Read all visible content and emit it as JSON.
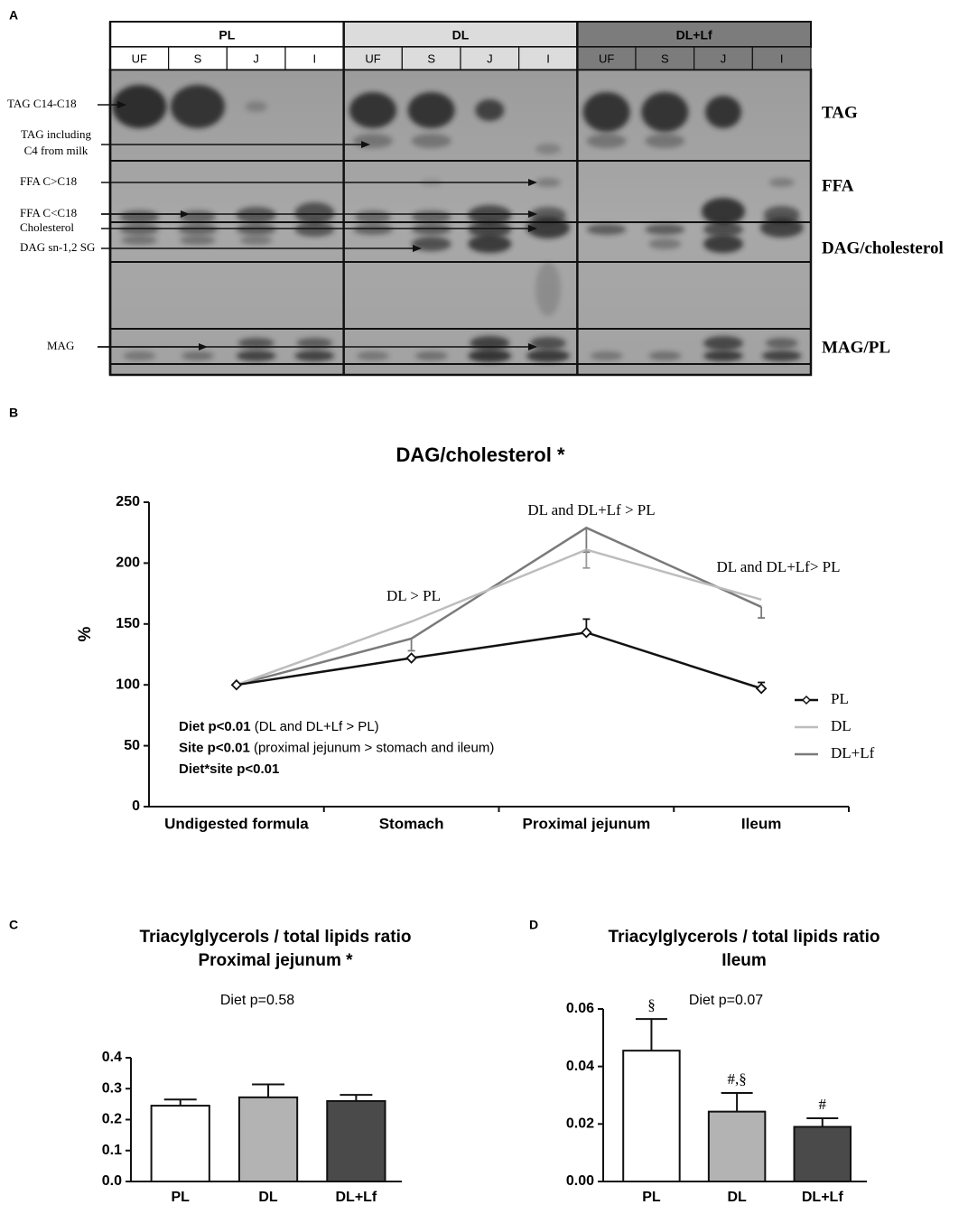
{
  "panel_labels": [
    "A",
    "B",
    "C",
    "D"
  ],
  "panel_a": {
    "groups": [
      {
        "name": "PL",
        "lanes": [
          "UF",
          "S",
          "J",
          "I"
        ]
      },
      {
        "name": "DL",
        "lanes": [
          "UF",
          "S",
          "J",
          "I"
        ]
      },
      {
        "name": "DL+Lf",
        "lanes": [
          "UF",
          "S",
          "J",
          "I"
        ]
      }
    ],
    "left_labels": [
      "TAG C14-C18",
      "TAG including",
      "C4 from milk",
      "FFA C>C18",
      "FFA C<C18",
      "Cholesterol",
      "DAG sn-1,2 SG",
      "MAG"
    ],
    "right_labels": [
      "TAG",
      "FFA",
      "DAG/cholesterol",
      "MAG/PL"
    ]
  },
  "chart_data": [
    {
      "type": "line",
      "title": "DAG/cholesterol *",
      "y_label": "%",
      "categories": [
        "Undigested formula",
        "Stomach",
        "Proximal jejunum",
        "Ileum"
      ],
      "series": [
        {
          "name": "PL",
          "color": "#111111",
          "values": [
            100,
            122,
            143,
            97
          ],
          "errors": [
            null,
            null,
            11,
            5
          ]
        },
        {
          "name": "DL",
          "color": "#bdbdbd",
          "values": [
            100,
            152,
            211,
            170
          ],
          "errors": [
            null,
            null,
            15,
            null
          ]
        },
        {
          "name": "DL+Lf",
          "color": "#7a7a7a",
          "values": [
            100,
            138,
            229,
            164
          ],
          "errors": [
            null,
            10,
            20,
            9
          ]
        }
      ],
      "ylim": [
        0,
        250
      ],
      "yticks": [
        0,
        50,
        100,
        150,
        200,
        250
      ],
      "annotations": [
        "DL > PL",
        "DL and DL+Lf > PL",
        "DL and DL+Lf> PL"
      ],
      "stats": [
        {
          "bold": "Diet p<0.01",
          "text": "(DL and DL+Lf > PL)"
        },
        {
          "bold": "Site p<0.01",
          "text": "(proximal  jejunum > stomach and ileum)"
        },
        {
          "bold": "Diet*site  p<0.01"
        }
      ],
      "legend": "right"
    },
    {
      "type": "bar",
      "title": [
        "Triacylglycerols / total lipids ratio",
        "Proximal jejunum  *"
      ],
      "annotation": "Diet p=0.58",
      "categories": [
        "PL",
        "DL",
        "DL+Lf"
      ],
      "values": [
        0.245,
        0.272,
        0.26
      ],
      "errors": [
        0.02,
        0.042,
        0.02
      ],
      "colors": [
        "#ffffff",
        "#b3b3b3",
        "#4a4a4a"
      ],
      "ylim": [
        0,
        0.4
      ],
      "yticks": [
        {
          "value": 0,
          "label": "0.0"
        },
        0.1,
        0.2,
        0.3,
        0.4
      ]
    },
    {
      "type": "bar",
      "title": [
        "Triacylglycerols / total lipids ratio",
        "Ileum"
      ],
      "annotation": "Diet p=0.07",
      "categories": [
        "PL",
        "DL",
        "DL+Lf"
      ],
      "values": [
        0.0455,
        0.0243,
        0.019
      ],
      "errors": [
        0.011,
        0.0065,
        0.003
      ],
      "bar_annotations": [
        "§",
        "#,§",
        "#"
      ],
      "colors": [
        "#ffffff",
        "#b3b3b3",
        "#4a4a4a"
      ],
      "ylim": [
        0,
        0.06
      ],
      "yticks": [
        {
          "value": 0,
          "label": "0.00"
        },
        0.02,
        0.04,
        0.06
      ]
    }
  ]
}
